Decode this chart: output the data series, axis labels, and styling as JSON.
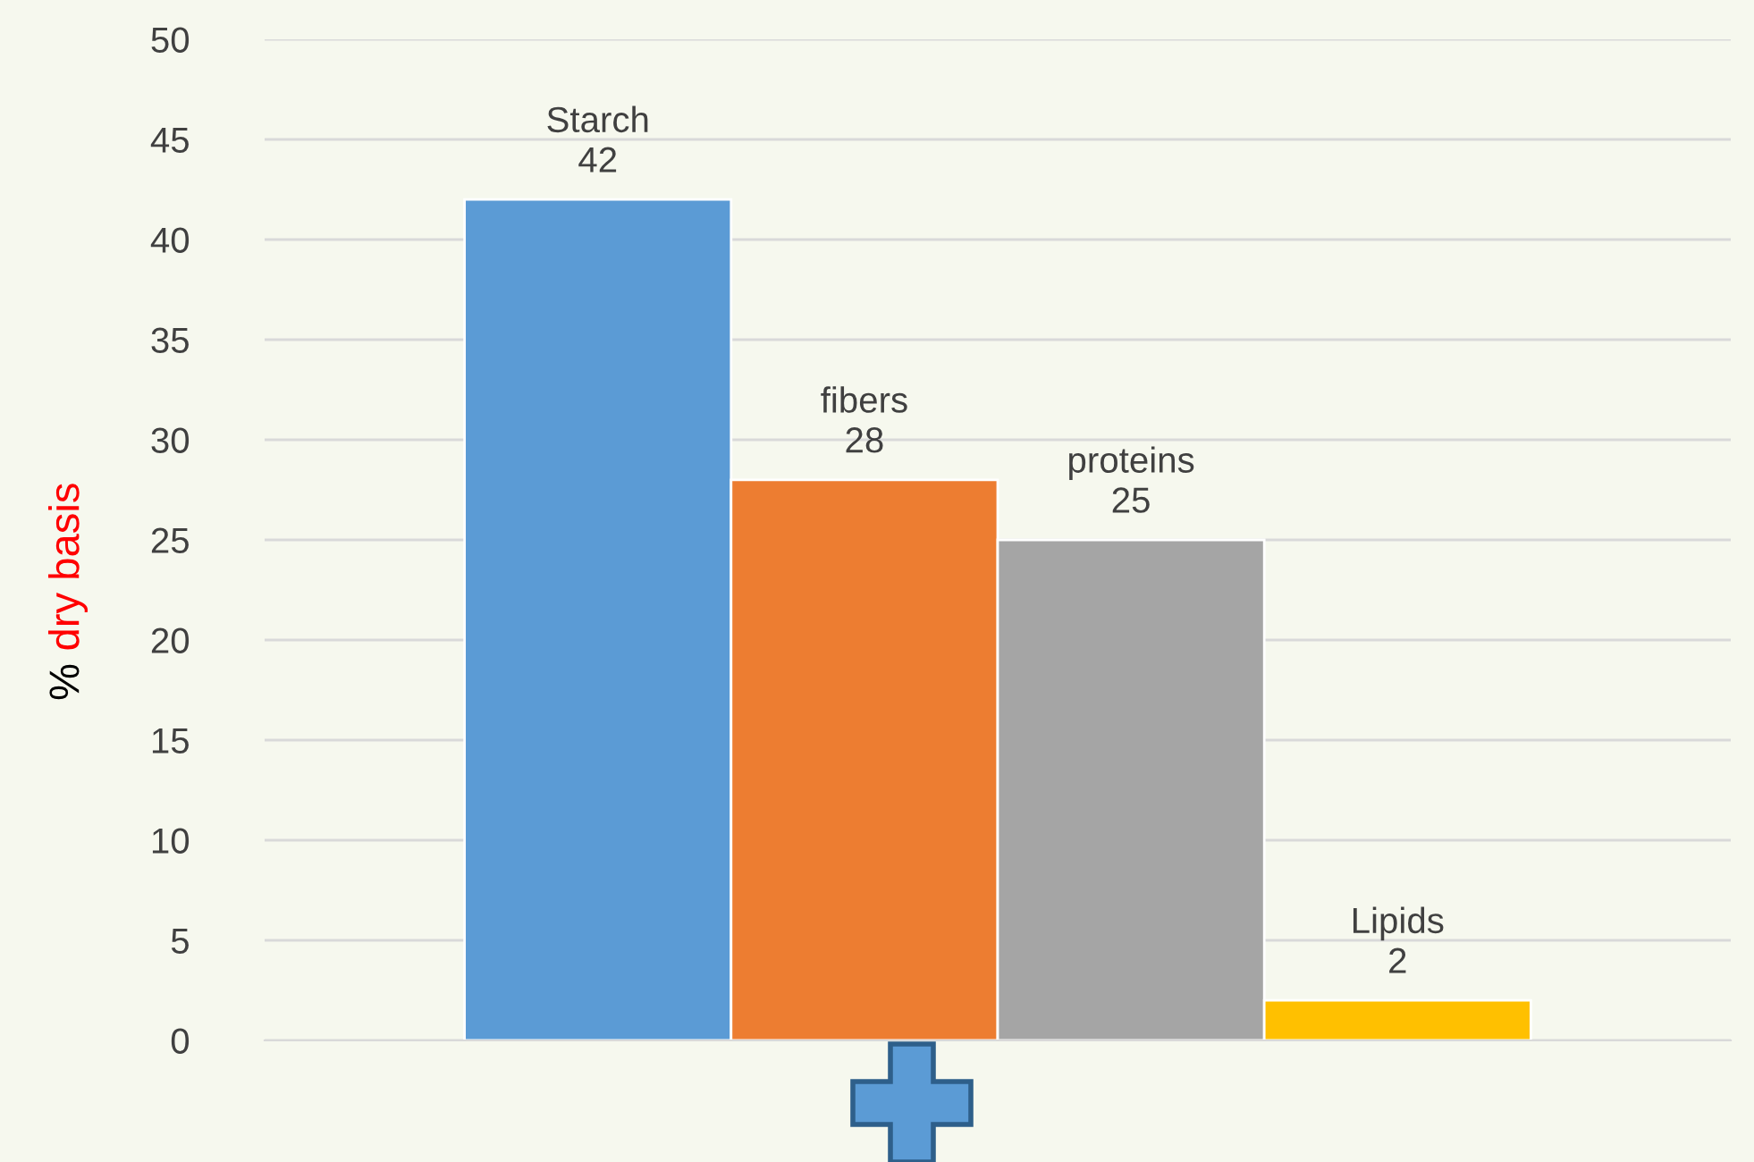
{
  "chart_data": {
    "type": "bar",
    "ylabel": "% dry basis",
    "categories": [
      null
    ],
    "series": [
      {
        "name": "Starch",
        "color": "#5b9bd5",
        "values": [
          42
        ]
      },
      {
        "name": "fibers",
        "color": "#ed7d31",
        "values": [
          28
        ]
      },
      {
        "name": "proteins",
        "color": "#a5a5a5",
        "values": [
          25
        ]
      },
      {
        "name": "Lipids",
        "color": "#ffc000",
        "values": [
          2
        ]
      }
    ],
    "ylim": [
      0,
      50
    ],
    "yticks": [
      0,
      5,
      10,
      15,
      20,
      25,
      30,
      35,
      40,
      45,
      50
    ],
    "grid": "y",
    "data_labels": true,
    "legend": false
  }
}
